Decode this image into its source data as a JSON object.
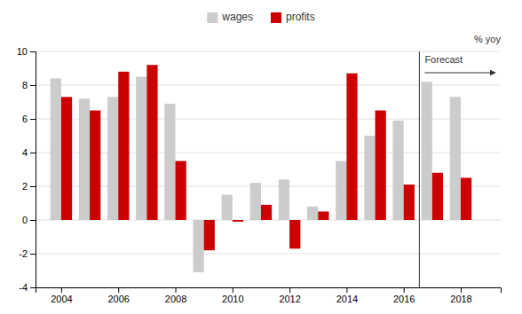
{
  "chart_data": {
    "type": "bar",
    "x": [
      2004,
      2005,
      2006,
      2007,
      2008,
      2009,
      2010,
      2011,
      2012,
      2013,
      2014,
      2015,
      2016,
      2017,
      2018
    ],
    "series": [
      {
        "name": "wages",
        "color": "#cccccc",
        "values": [
          8.4,
          7.2,
          7.3,
          8.5,
          6.9,
          -3.1,
          1.5,
          2.2,
          2.4,
          0.8,
          3.5,
          5.0,
          5.9,
          8.2,
          7.3
        ]
      },
      {
        "name": "profits",
        "color": "#cc0000",
        "values": [
          7.3,
          6.5,
          8.8,
          9.2,
          3.5,
          -1.8,
          -0.1,
          0.9,
          -1.7,
          0.5,
          8.7,
          6.5,
          2.1,
          2.8,
          2.5
        ]
      }
    ],
    "xlim": [
      2003.1,
      2019.4
    ],
    "xticks": [
      2004,
      2006,
      2008,
      2010,
      2012,
      2014,
      2016,
      2018
    ],
    "ylim": [
      -4,
      10
    ],
    "yticks": [
      -4,
      -2,
      0,
      2,
      4,
      6,
      8,
      10
    ],
    "y_label": "% yoy",
    "annotations": [
      {
        "text": "Forecast",
        "x": 2016.55
      }
    ],
    "grid": true,
    "legend": "top"
  }
}
